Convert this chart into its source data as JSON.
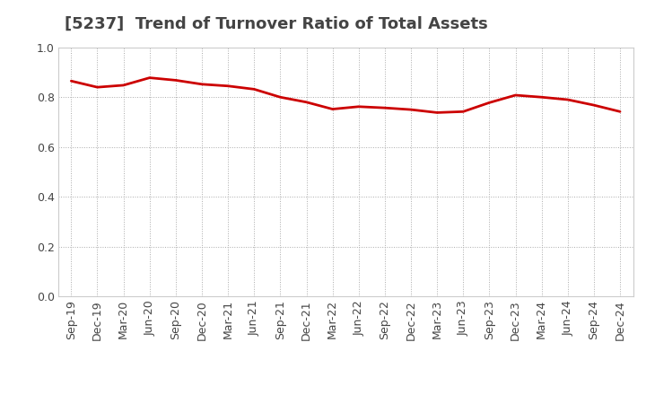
{
  "title": "[5237]  Trend of Turnover Ratio of Total Assets",
  "x_labels": [
    "Sep-19",
    "Dec-19",
    "Mar-20",
    "Jun-20",
    "Sep-20",
    "Dec-20",
    "Mar-21",
    "Jun-21",
    "Sep-21",
    "Dec-21",
    "Mar-22",
    "Jun-22",
    "Sep-22",
    "Dec-22",
    "Mar-23",
    "Jun-23",
    "Sep-23",
    "Dec-23",
    "Mar-24",
    "Jun-24",
    "Sep-24",
    "Dec-24"
  ],
  "y_values": [
    0.865,
    0.84,
    0.848,
    0.878,
    0.868,
    0.852,
    0.845,
    0.832,
    0.8,
    0.78,
    0.752,
    0.762,
    0.757,
    0.75,
    0.738,
    0.742,
    0.778,
    0.808,
    0.8,
    0.79,
    0.768,
    0.742
  ],
  "line_color": "#cc0000",
  "line_width": 2.0,
  "ylim": [
    0.0,
    1.0
  ],
  "yticks": [
    0.0,
    0.2,
    0.4,
    0.6,
    0.8,
    1.0
  ],
  "grid_color": "#aaaaaa",
  "background_color": "#ffffff",
  "title_fontsize": 13,
  "tick_fontsize": 9,
  "title_color": "#444444"
}
